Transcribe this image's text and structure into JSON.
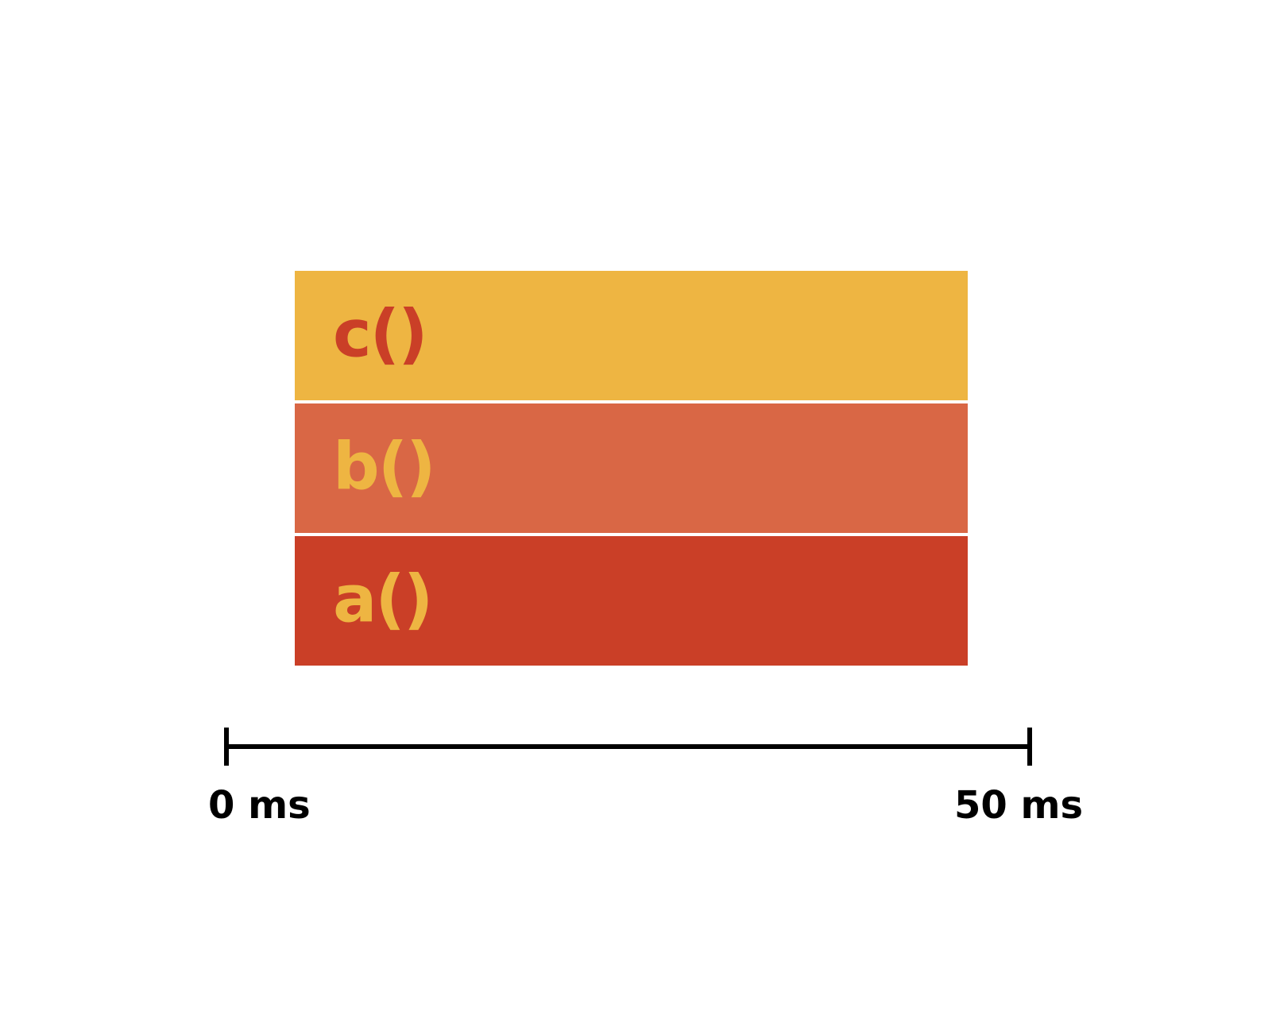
{
  "colors": {
    "background": "#ffffff",
    "yellow": "#eeb542",
    "orange": "#d96745",
    "red": "#ca3f27",
    "axis": "#000000"
  },
  "frames": [
    {
      "name": "c",
      "paren": "()",
      "fill": "#eeb542",
      "text_color": "#ca3f27"
    },
    {
      "name": "b",
      "paren": "()",
      "fill": "#d96745",
      "text_color": "#eeb542"
    },
    {
      "name": "a",
      "paren": "()",
      "fill": "#ca3f27",
      "text_color": "#eeb542"
    }
  ],
  "timeline": {
    "start_label": "0 ms",
    "end_label": "50 ms"
  }
}
